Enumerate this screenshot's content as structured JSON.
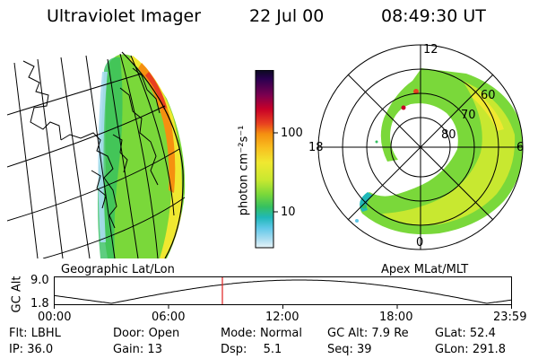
{
  "header": {
    "instrument": "Ultraviolet Imager",
    "date": "22 Jul 00",
    "time": "08:49:30 UT"
  },
  "geo_panel": {
    "title": "Geographic Lat/Lon"
  },
  "colorbar": {
    "unit_label": "photon cm⁻²s⁻¹",
    "ticks": [
      "100",
      "10"
    ],
    "colors": [
      "#0a0a1e",
      "#2a0050",
      "#7a0050",
      "#c80028",
      "#e84020",
      "#f59010",
      "#f8c020",
      "#f0e830",
      "#c8e830",
      "#7ad83a",
      "#36c060",
      "#20b8b8",
      "#60c8e8",
      "#a8dcf0",
      "#e6f4f8"
    ]
  },
  "polar_panel": {
    "title": "Apex MLat/MLT",
    "mlt_labels": {
      "top": "12",
      "left": "18",
      "right": "6",
      "bottom": "0"
    },
    "lat_labels": [
      "60",
      "70",
      "80"
    ]
  },
  "altitude_plot": {
    "ylabel": "GC Alt",
    "ymax": "9.0",
    "ymin": "1.8",
    "x_ticks": [
      "00:00",
      "06:00",
      "12:00",
      "18:00",
      "23:59"
    ],
    "current_time_hours": 8.825
  },
  "info": {
    "flt": {
      "label": "Flt:",
      "value": "LBHL"
    },
    "ip": {
      "label": "IP:",
      "value": "36.0"
    },
    "door": {
      "label": "Door:",
      "value": "Open"
    },
    "gain": {
      "label": "Gain:",
      "value": "13"
    },
    "mode": {
      "label": "Mode:",
      "value": "Normal"
    },
    "dsp": {
      "label": "Dsp:",
      "value": "5.1"
    },
    "gc_alt": {
      "label": "GC Alt:",
      "value": "7.9 Re"
    },
    "seq": {
      "label": "Seq:",
      "value": "39"
    },
    "glat": {
      "label": "GLat:",
      "value": "52.4"
    },
    "glon": {
      "label": "GLon:",
      "value": "291.8"
    }
  }
}
